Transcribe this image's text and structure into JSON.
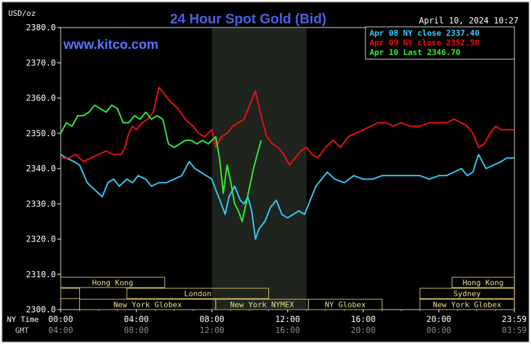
{
  "chart_data": {
    "type": "line",
    "title": "24 Hour Spot Gold (Bid)",
    "watermark": "www.kitco.com",
    "timestamp": "April 10, 2024 10:27",
    "ylabel": "USD/oz",
    "ylim": [
      2300,
      2380
    ],
    "yticks": [
      "2380.0",
      "2370.0",
      "2360.0",
      "2350.0",
      "2340.0",
      "2330.0",
      "2320.0",
      "2310.0",
      "2300.0"
    ],
    "x_row_labels": [
      "NY Time",
      "GMT"
    ],
    "ny_ticks": [
      "00:00",
      "04:00",
      "08:00",
      "12:00",
      "16:00",
      "20:00",
      "23:59"
    ],
    "gmt_ticks": [
      "04:00",
      "08:00",
      "12:00",
      "16:00",
      "20:00",
      "00:00",
      "03:59"
    ],
    "xlim": [
      0,
      24
    ],
    "highlight_band": [
      8,
      13
    ],
    "grid": false,
    "legend_position": "top-right",
    "legend": [
      "Apr 08 NY close 2337.40",
      "Apr 09 NY close 2352.50",
      "Apr 10 Last 2346.70"
    ],
    "sessions": [
      {
        "label": "Hong Kong",
        "start": 0,
        "end": 5.5,
        "row": 0
      },
      {
        "label": "",
        "start": 0,
        "end": 1,
        "row": 1
      },
      {
        "label": "London",
        "start": 3.5,
        "end": 11,
        "row": 1
      },
      {
        "label": "New York Globex",
        "start": 1,
        "end": 8.2,
        "row": 2
      },
      {
        "label": "New York NYMEX",
        "start": 8.2,
        "end": 13.1,
        "row": 2
      },
      {
        "label": "NY Globex",
        "start": 13.1,
        "end": 17,
        "row": 2
      },
      {
        "label": "Hong Kong",
        "start": 20.7,
        "end": 23.99,
        "row": 0
      },
      {
        "label": "Sydney",
        "start": 19,
        "end": 23.99,
        "row": 1
      },
      {
        "label": "New York Globex",
        "start": 19,
        "end": 23.99,
        "row": 2
      }
    ],
    "series": [
      {
        "name": "Apr 08 NY close 2337.40",
        "color": "#33ccff",
        "x": [
          0,
          0.3,
          0.7,
          1,
          1.4,
          1.8,
          2.2,
          2.5,
          2.8,
          3.1,
          3.5,
          3.8,
          4.1,
          4.5,
          4.8,
          5.2,
          5.6,
          6,
          6.4,
          6.8,
          7.1,
          7.4,
          7.7,
          8,
          8.2,
          8.5,
          8.7,
          8.9,
          9.2,
          9.5,
          9.7,
          9.9,
          10.1,
          10.3,
          10.5,
          10.8,
          11.1,
          11.4,
          11.7,
          12,
          12.3,
          12.6,
          12.9,
          13.2,
          13.5,
          13.8,
          14.1,
          14.5,
          15,
          15.5,
          16,
          16.5,
          17,
          17.5,
          18,
          18.5,
          19,
          19.5,
          20,
          20.4,
          20.8,
          21.2,
          21.5,
          21.8,
          22.1,
          22.5,
          22.9,
          23.3,
          23.6,
          23.99
        ],
        "y": [
          2344,
          2343,
          2342,
          2341,
          2336,
          2334,
          2332,
          2336,
          2337,
          2335,
          2337,
          2336,
          2338,
          2337,
          2335,
          2336,
          2336,
          2337,
          2338,
          2342,
          2340,
          2339,
          2338,
          2337,
          2334,
          2330,
          2327,
          2332,
          2335,
          2331,
          2330,
          2332,
          2328,
          2320,
          2323,
          2325,
          2329,
          2331,
          2327,
          2326,
          2327,
          2328,
          2327,
          2331,
          2335,
          2337,
          2339,
          2337,
          2336,
          2338,
          2337,
          2337,
          2338,
          2338,
          2338,
          2338,
          2338,
          2337,
          2338,
          2338,
          2339,
          2340,
          2338,
          2339,
          2344,
          2340,
          2341,
          2342,
          2343,
          2343
        ]
      },
      {
        "name": "Apr 09 NY close 2352.50",
        "color": "#ee1111",
        "x": [
          0,
          0.4,
          0.8,
          1.2,
          1.6,
          2,
          2.4,
          2.8,
          3.2,
          3.4,
          3.6,
          3.8,
          4,
          4.3,
          4.6,
          4.9,
          5.2,
          5.5,
          5.8,
          6.2,
          6.6,
          7,
          7.3,
          7.6,
          8,
          8.2,
          8.5,
          8.8,
          9.1,
          9.4,
          9.7,
          10,
          10.3,
          10.6,
          10.9,
          11.2,
          11.5,
          11.8,
          12.1,
          12.4,
          12.7,
          13,
          13.3,
          13.6,
          14,
          14.4,
          14.8,
          15.2,
          15.6,
          16,
          16.4,
          16.8,
          17.2,
          17.6,
          18,
          18.5,
          19,
          19.5,
          20,
          20.4,
          20.8,
          21.2,
          21.5,
          21.8,
          22.1,
          22.4,
          22.7,
          23,
          23.3,
          23.6,
          23.99
        ],
        "y": [
          2343,
          2343,
          2344,
          2342,
          2343,
          2344,
          2345,
          2344,
          2344,
          2346,
          2350,
          2352,
          2351,
          2353,
          2354,
          2356,
          2363,
          2361,
          2359,
          2357,
          2354,
          2352,
          2350,
          2349,
          2351,
          2346,
          2349,
          2350,
          2352,
          2353,
          2354,
          2358,
          2362,
          2355,
          2349,
          2347,
          2346,
          2344,
          2341,
          2343,
          2345,
          2346,
          2344,
          2343,
          2346,
          2348,
          2346,
          2349,
          2350,
          2351,
          2352,
          2353,
          2353,
          2352,
          2353,
          2352,
          2352,
          2353,
          2353,
          2353,
          2354,
          2353,
          2352,
          2350,
          2346,
          2347,
          2350,
          2352,
          2351,
          2351,
          2351
        ]
      },
      {
        "name": "Apr 10 Last 2346.70",
        "color": "#33ee33",
        "x": [
          0,
          0.3,
          0.6,
          0.9,
          1.2,
          1.5,
          1.8,
          2.1,
          2.4,
          2.7,
          3,
          3.3,
          3.6,
          3.9,
          4.2,
          4.5,
          4.8,
          5.1,
          5.4,
          5.7,
          6,
          6.3,
          6.6,
          6.9,
          7.2,
          7.5,
          7.8,
          8,
          8.2,
          8.4,
          8.6,
          8.8,
          9,
          9.2,
          9.4,
          9.6,
          9.8,
          10,
          10.2,
          10.4,
          10.6
        ],
        "y": [
          2350,
          2353,
          2352,
          2355,
          2355,
          2356,
          2358,
          2357,
          2356,
          2358,
          2357,
          2353,
          2353,
          2355,
          2354,
          2356,
          2354,
          2355,
          2354,
          2347,
          2346,
          2347,
          2348,
          2348,
          2347,
          2348,
          2347,
          2348,
          2349,
          2343,
          2333,
          2341,
          2336,
          2330,
          2328,
          2325,
          2330,
          2335,
          2340,
          2344,
          2348
        ]
      }
    ]
  }
}
